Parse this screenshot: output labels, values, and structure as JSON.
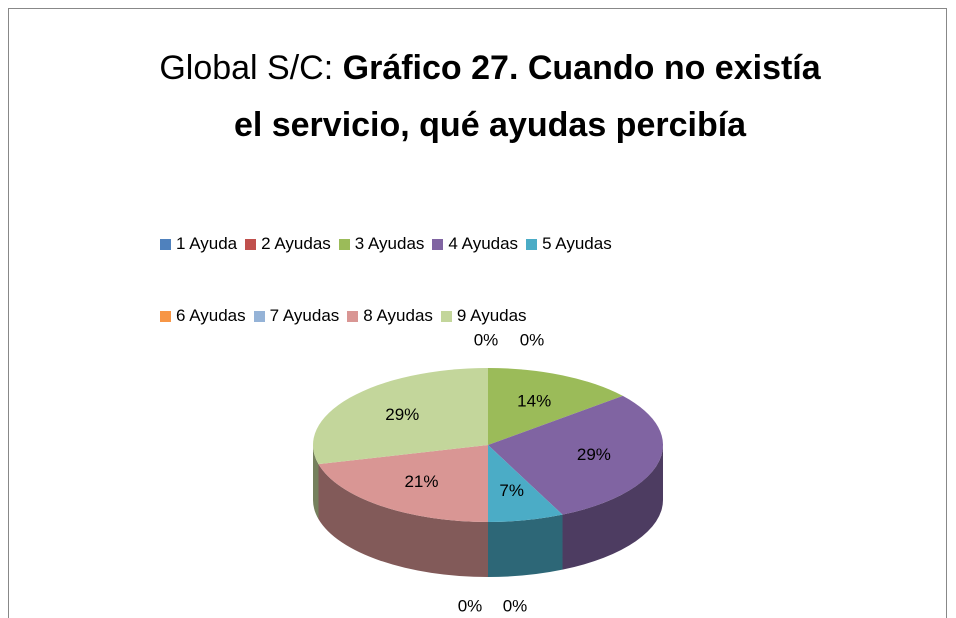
{
  "chart_data": {
    "type": "pie",
    "title_prefix": "Global S/C:",
    "title": "Gráfico 27. Cuando no existía el servicio, qué ayudas percibía",
    "categories": [
      "1 Ayuda",
      "2 Ayudas",
      "3 Ayudas",
      "4 Ayudas",
      "5 Ayudas",
      "6 Ayudas",
      "7 Ayudas",
      "8 Ayudas",
      "9 Ayudas"
    ],
    "values": [
      0,
      0,
      14,
      29,
      7,
      0,
      0,
      21,
      29
    ],
    "value_labels": [
      "0%",
      "0%",
      "14%",
      "29%",
      "7%",
      "0%",
      "0%",
      "21%",
      "29%"
    ],
    "colors": [
      "#4f81bd",
      "#c0504d",
      "#9bbb59",
      "#8064a2",
      "#4bacc6",
      "#f79646",
      "#95b3d7",
      "#d99694",
      "#c3d69b"
    ],
    "legend": "top"
  }
}
